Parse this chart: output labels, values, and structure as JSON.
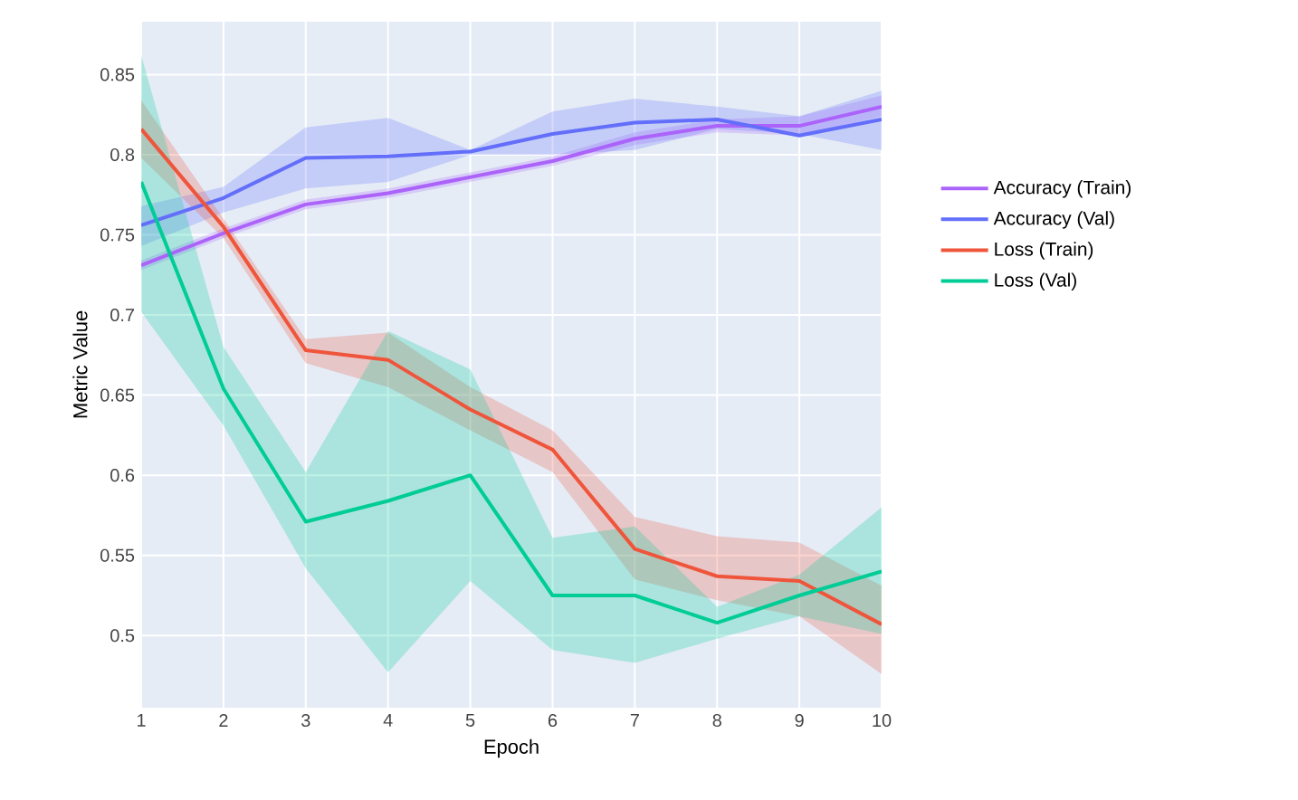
{
  "chart_data": {
    "type": "line",
    "xlabel": "Epoch",
    "ylabel": "Metric Value",
    "x": [
      1,
      2,
      3,
      4,
      5,
      6,
      7,
      8,
      9,
      10
    ],
    "xlim": [
      1,
      10
    ],
    "ylim": [
      0.455,
      0.883
    ],
    "xticks": [
      1,
      2,
      3,
      4,
      5,
      6,
      7,
      8,
      9,
      10
    ],
    "yticks": [
      0.5,
      0.55,
      0.6,
      0.65,
      0.7,
      0.75,
      0.8,
      0.85
    ],
    "grid": true,
    "legend": "right",
    "series": [
      {
        "name": "Accuracy (Train)",
        "color": "#ab63fa",
        "values": [
          0.731,
          0.751,
          0.769,
          0.776,
          0.786,
          0.796,
          0.81,
          0.818,
          0.818,
          0.83
        ],
        "lower": [
          0.728,
          0.748,
          0.766,
          0.773,
          0.783,
          0.793,
          0.806,
          0.814,
          0.812,
          0.824
        ],
        "upper": [
          0.734,
          0.754,
          0.772,
          0.779,
          0.789,
          0.799,
          0.814,
          0.822,
          0.824,
          0.837
        ]
      },
      {
        "name": "Accuracy (Val)",
        "color": "#636efa",
        "values": [
          0.756,
          0.773,
          0.798,
          0.799,
          0.802,
          0.813,
          0.82,
          0.822,
          0.812,
          0.822
        ],
        "lower": [
          0.743,
          0.764,
          0.779,
          0.783,
          0.8,
          0.8,
          0.803,
          0.816,
          0.813,
          0.803
        ],
        "upper": [
          0.768,
          0.78,
          0.817,
          0.823,
          0.803,
          0.827,
          0.835,
          0.83,
          0.824,
          0.84
        ]
      },
      {
        "name": "Loss (Train)",
        "color": "#ef553b",
        "values": [
          0.816,
          0.755,
          0.678,
          0.672,
          0.641,
          0.616,
          0.554,
          0.537,
          0.534,
          0.507
        ],
        "lower": [
          0.798,
          0.748,
          0.67,
          0.655,
          0.628,
          0.602,
          0.535,
          0.522,
          0.512,
          0.476
        ],
        "upper": [
          0.834,
          0.76,
          0.685,
          0.689,
          0.655,
          0.628,
          0.574,
          0.562,
          0.558,
          0.531
        ]
      },
      {
        "name": "Loss (Val)",
        "color": "#00cc96",
        "values": [
          0.783,
          0.654,
          0.571,
          0.584,
          0.6,
          0.525,
          0.525,
          0.508,
          0.525,
          0.54
        ],
        "lower": [
          0.702,
          0.631,
          0.542,
          0.477,
          0.534,
          0.491,
          0.483,
          0.498,
          0.512,
          0.501
        ],
        "upper": [
          0.862,
          0.68,
          0.602,
          0.69,
          0.666,
          0.561,
          0.568,
          0.518,
          0.538,
          0.58
        ]
      }
    ]
  }
}
